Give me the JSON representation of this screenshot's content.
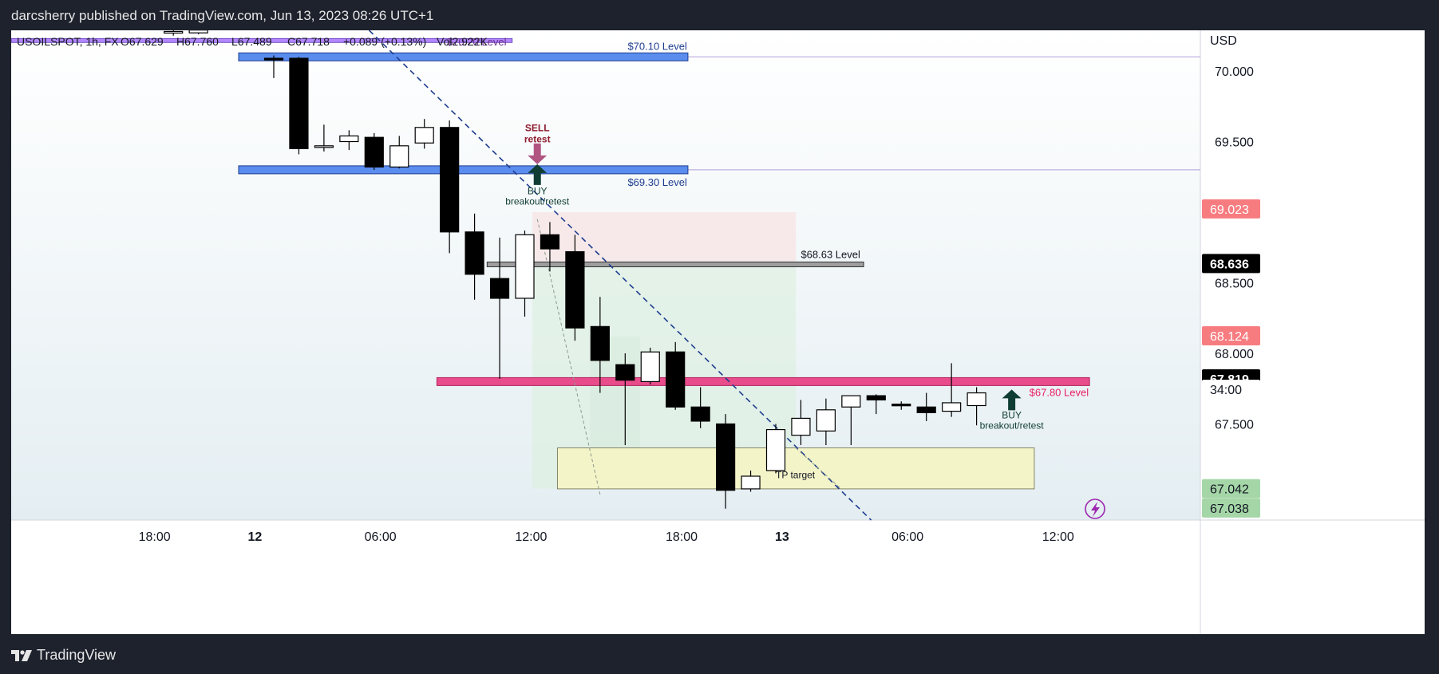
{
  "header": {
    "publish_text": "darcsherry published on TradingView.com, Jun 13, 2023 08:26 UTC+1"
  },
  "footer": {
    "brand": "TradingView",
    "logo_icon": "tradingview-logo-icon"
  },
  "legend": {
    "symbol": "USOILSPOT, 1h, FX",
    "open": "O67.629",
    "high": "H67.760",
    "low": "L67.489",
    "close": "C67.718",
    "change": "+0.089 (+0.13%)",
    "volume": "Vol2.922K"
  },
  "price_axis": {
    "currency": "USD",
    "ticks": [
      "70.000",
      "69.500",
      "68.500",
      "68.000",
      "67.500"
    ],
    "badges": [
      {
        "label": "69.023",
        "bg": "#f77c80",
        "fg": "#ffffff",
        "price": 69.023
      },
      {
        "label": "68.636",
        "bg": "#000000",
        "fg": "#ffffff",
        "price": 68.636
      },
      {
        "label": "68.124",
        "bg": "#f77c80",
        "fg": "#ffffff",
        "price": 68.124
      },
      {
        "label": "67.819",
        "bg": "#000000",
        "fg": "#ffffff",
        "price": 67.819
      },
      {
        "label": "34:00",
        "bg": "#ffffff",
        "fg": "#131722",
        "price": 67.745
      },
      {
        "label": "67.042",
        "bg": "#a5d6a7",
        "fg": "#131722",
        "price": 67.042
      },
      {
        "label": "67.038",
        "bg": "#a5d6a7",
        "fg": "#131722",
        "price": 66.905
      }
    ]
  },
  "time_axis": {
    "ticks": [
      {
        "label": "18:00",
        "bold": false,
        "t": 5.25
      },
      {
        "label": "12",
        "bold": true,
        "t": 9.25
      },
      {
        "label": "06:00",
        "bold": false,
        "t": 14.25
      },
      {
        "label": "12:00",
        "bold": false,
        "t": 20.25
      },
      {
        "label": "18:00",
        "bold": false,
        "t": 26.25
      },
      {
        "label": "13",
        "bold": true,
        "t": 30.25
      },
      {
        "label": "06:00",
        "bold": false,
        "t": 35.25
      },
      {
        "label": "12:00",
        "bold": false,
        "t": 41.25
      }
    ]
  },
  "annotations": {
    "level_7020": "$70.20 Level",
    "level_7010": "$70.10 Level",
    "level_6930": "$69.30 Level",
    "level_6863": "$68.63 Level",
    "level_6780": "$67.80 Level",
    "sell_line1": "SELL",
    "sell_line2": "retest",
    "buy1_line1": "BUY",
    "buy1_line2": "breakout/retest",
    "buy2_line1": "BUY",
    "buy2_line2": "breakout/retest",
    "tp": "TP target"
  },
  "colors": {
    "background": "#1e222d",
    "pane": "#f0f6f8",
    "candle_up": "#ffffff",
    "candle_down": "#000000",
    "level_blue": "#5b8def",
    "level_pink": "#e84c8b",
    "level_grey": "#6b6b6b",
    "trendline": "#1e3d8f",
    "tp_zone": "#f4f4c9",
    "stop_zone": "#f7e6e6",
    "profit_zone": "#dff0e3",
    "buy_arrow": "#0f3d33",
    "sell_arrow": "#b05582",
    "sell_text": "#8e1b2e",
    "label_blue": "#1e3d8f",
    "label_purple": "#6a2a8f"
  },
  "chart_data": {
    "type": "candlestick",
    "symbol": "USOILSPOT",
    "interval": "1h",
    "currency": "USD",
    "ylim": [
      66.8,
      70.32
    ],
    "candles": [
      {
        "t": 6,
        "o": 70.27,
        "h": 70.3,
        "l": 70.25,
        "c": 70.28
      },
      {
        "t": 7,
        "o": 70.27,
        "h": 70.3,
        "l": 70.26,
        "c": 70.29
      },
      {
        "t": 10,
        "o": 70.09,
        "h": 70.11,
        "l": 69.95,
        "c": 70.08
      },
      {
        "t": 11,
        "o": 70.09,
        "h": 70.1,
        "l": 69.41,
        "c": 69.45
      },
      {
        "t": 12,
        "o": 69.46,
        "h": 69.62,
        "l": 69.43,
        "c": 69.47
      },
      {
        "t": 13,
        "o": 69.5,
        "h": 69.58,
        "l": 69.44,
        "c": 69.54
      },
      {
        "t": 14,
        "o": 69.53,
        "h": 69.56,
        "l": 69.3,
        "c": 69.32
      },
      {
        "t": 15,
        "o": 69.32,
        "h": 69.54,
        "l": 69.31,
        "c": 69.47
      },
      {
        "t": 16,
        "o": 69.49,
        "h": 69.66,
        "l": 69.45,
        "c": 69.6
      },
      {
        "t": 17,
        "o": 69.6,
        "h": 69.65,
        "l": 68.71,
        "c": 68.86
      },
      {
        "t": 18,
        "o": 68.86,
        "h": 68.99,
        "l": 68.38,
        "c": 68.56
      },
      {
        "t": 19,
        "o": 68.53,
        "h": 68.82,
        "l": 67.82,
        "c": 68.39
      },
      {
        "t": 20,
        "o": 68.39,
        "h": 68.87,
        "l": 68.26,
        "c": 68.84
      },
      {
        "t": 21,
        "o": 68.84,
        "h": 68.93,
        "l": 68.58,
        "c": 68.74
      },
      {
        "t": 22,
        "o": 68.72,
        "h": 68.84,
        "l": 68.09,
        "c": 68.18
      },
      {
        "t": 23,
        "o": 68.19,
        "h": 68.4,
        "l": 67.72,
        "c": 67.95
      },
      {
        "t": 24,
        "o": 67.92,
        "h": 68.0,
        "l": 67.35,
        "c": 67.81
      },
      {
        "t": 25,
        "o": 67.8,
        "h": 68.04,
        "l": 67.78,
        "c": 68.01
      },
      {
        "t": 26,
        "o": 68.01,
        "h": 68.08,
        "l": 67.6,
        "c": 67.62
      },
      {
        "t": 27,
        "o": 67.62,
        "h": 67.76,
        "l": 67.47,
        "c": 67.52
      },
      {
        "t": 28,
        "o": 67.5,
        "h": 67.57,
        "l": 66.9,
        "c": 67.03
      },
      {
        "t": 29,
        "o": 67.04,
        "h": 67.17,
        "l": 67.02,
        "c": 67.13
      },
      {
        "t": 30,
        "o": 67.17,
        "h": 67.5,
        "l": 67.15,
        "c": 67.46
      },
      {
        "t": 31,
        "o": 67.42,
        "h": 67.67,
        "l": 67.35,
        "c": 67.54
      },
      {
        "t": 32,
        "o": 67.45,
        "h": 67.68,
        "l": 67.35,
        "c": 67.6
      },
      {
        "t": 33,
        "o": 67.62,
        "h": 67.7,
        "l": 67.35,
        "c": 67.7
      },
      {
        "t": 34,
        "o": 67.7,
        "h": 67.71,
        "l": 67.57,
        "c": 67.67
      },
      {
        "t": 35,
        "o": 67.64,
        "h": 67.66,
        "l": 67.6,
        "c": 67.63
      },
      {
        "t": 36,
        "o": 67.62,
        "h": 67.72,
        "l": 67.52,
        "c": 67.58
      },
      {
        "t": 37,
        "o": 67.59,
        "h": 67.93,
        "l": 67.55,
        "c": 67.65
      },
      {
        "t": 38,
        "o": 67.63,
        "h": 67.76,
        "l": 67.49,
        "c": 67.72
      }
    ],
    "levels": [
      {
        "price": 70.2,
        "label": "$70.20 Level"
      },
      {
        "price": 70.1,
        "label": "$70.10 Level"
      },
      {
        "price": 69.3,
        "label": "$69.30 Level"
      },
      {
        "price": 68.63,
        "label": "$68.63 Level"
      },
      {
        "price": 67.8,
        "label": "$67.80 Level"
      }
    ]
  }
}
